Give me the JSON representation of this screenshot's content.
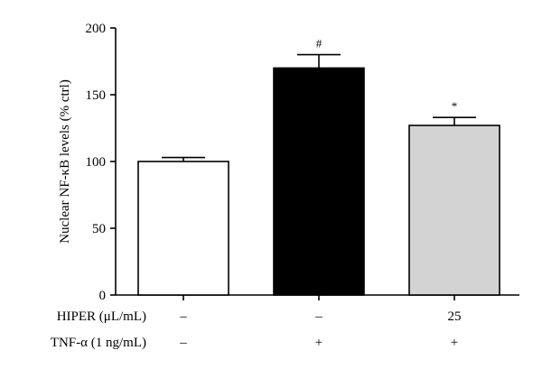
{
  "chart_data": {
    "type": "bar",
    "title": "",
    "xlabel": "",
    "ylabel": "Nuclear NF-κB levels (% ctrl)",
    "ylim": [
      0,
      200
    ],
    "yticks": [
      0,
      50,
      100,
      150,
      200
    ],
    "grid": false,
    "bars": [
      {
        "value": 100,
        "error": 3,
        "fill": "#ffffff",
        "annotation": ""
      },
      {
        "value": 170,
        "error": 10,
        "fill": "#000000",
        "annotation": "#"
      },
      {
        "value": 127,
        "error": 6,
        "fill": "#d3d3d3",
        "annotation": "*"
      }
    ],
    "treatment_rows": [
      {
        "label": "HIPER (μL/mL)",
        "values": [
          "–",
          "–",
          "25"
        ]
      },
      {
        "label": "TNF-α (1 ng/mL)",
        "values": [
          "–",
          "+",
          "+"
        ]
      }
    ]
  }
}
